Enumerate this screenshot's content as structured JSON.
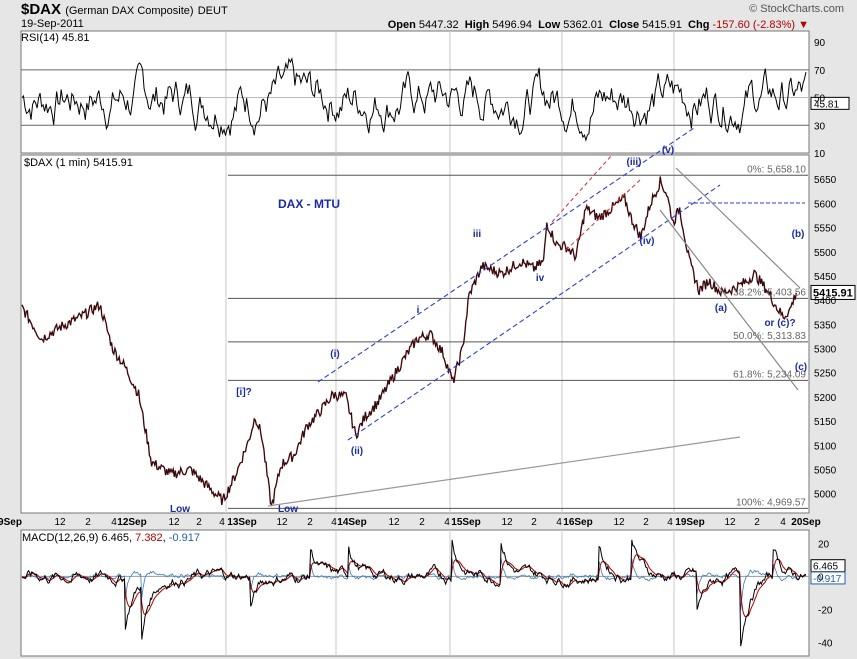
{
  "header": {
    "symbol": "$DAX",
    "name": "(German DAX Composite)",
    "exchange": "DEUT",
    "date": "19-Sep-2011",
    "watermark": "© StockCharts.com",
    "open_label": "Open",
    "open": "5447.32",
    "high_label": "High",
    "high": "5496.94",
    "low_label": "Low",
    "low": "5362.01",
    "close_label": "Close",
    "close": "5415.91",
    "chg_label": "Chg",
    "chg": "-157.60 (-2.83%)"
  },
  "chart_data": [
    {
      "type": "line",
      "panel": "RSI",
      "label": "RSI(14)",
      "last_value": "45.81",
      "ylim": [
        10,
        98
      ],
      "y_ticks": [
        90,
        70,
        50,
        30,
        10
      ],
      "reference_lines": [
        70,
        30
      ]
    },
    {
      "type": "line",
      "panel": "price",
      "label": "$DAX (1 min)",
      "last_value": "5415.91",
      "ylim": [
        4960,
        5700
      ],
      "y_ticks": [
        5650,
        5600,
        5550,
        5500,
        5450,
        5400,
        5350,
        5300,
        5250,
        5200,
        5150,
        5100,
        5050,
        5000
      ],
      "x_labels": [
        "9Sep",
        "12",
        "2",
        "4",
        "12Sep",
        "12",
        "2",
        "4",
        "13Sep",
        "12",
        "2",
        "4",
        "14Sep",
        "12",
        "2",
        "4",
        "15Sep",
        "12",
        "2",
        "4",
        "16Sep",
        "12",
        "2",
        "4",
        "19Sep",
        "12",
        "2",
        "4",
        "20Sep"
      ],
      "title_annotation": "DAX - MTU",
      "fib_levels": [
        {
          "label": "0%: 5,658.10",
          "value": 5658.1
        },
        {
          "label": "38.2%: 5,403.56",
          "value": 5403.56
        },
        {
          "label": "50.0%: 5,313.83",
          "value": 5313.83
        },
        {
          "label": "61.8%: 5,234.09",
          "value": 5234.09
        },
        {
          "label": "100%: 4,969.57",
          "value": 4969.57
        }
      ],
      "wave_labels": [
        "Low",
        "Low",
        "[i]?",
        "(i)",
        "(ii)",
        "i",
        "iii",
        "iv",
        "(iii)",
        "(iv)",
        "(v)",
        "(a)",
        "(b)",
        "(c)",
        "or (c)?"
      ],
      "series": [
        {
          "x": 0,
          "y": 5385
        },
        {
          "x": 3,
          "y": 5320
        },
        {
          "x": 6,
          "y": 5345
        },
        {
          "x": 9,
          "y": 5365
        },
        {
          "x": 12,
          "y": 5390
        },
        {
          "x": 14,
          "y": 5300
        },
        {
          "x": 16,
          "y": 5260
        },
        {
          "x": 18,
          "y": 5205
        },
        {
          "x": 20,
          "y": 5065
        },
        {
          "x": 23,
          "y": 5040
        },
        {
          "x": 26,
          "y": 5050
        },
        {
          "x": 29,
          "y": 5010
        },
        {
          "x": 31,
          "y": 4985
        },
        {
          "x": 33,
          "y": 5040
        },
        {
          "x": 35,
          "y": 5110
        },
        {
          "x": 36,
          "y": 5160
        },
        {
          "x": 37,
          "y": 5120
        },
        {
          "x": 38.5,
          "y": 4972
        },
        {
          "x": 40,
          "y": 5060
        },
        {
          "x": 42,
          "y": 5080
        },
        {
          "x": 44,
          "y": 5140
        },
        {
          "x": 46,
          "y": 5170
        },
        {
          "x": 48,
          "y": 5205
        },
        {
          "x": 50,
          "y": 5200
        },
        {
          "x": 51.5,
          "y": 5120
        },
        {
          "x": 53,
          "y": 5160
        },
        {
          "x": 55,
          "y": 5190
        },
        {
          "x": 57,
          "y": 5235
        },
        {
          "x": 59,
          "y": 5280
        },
        {
          "x": 61,
          "y": 5320
        },
        {
          "x": 63,
          "y": 5330
        },
        {
          "x": 65,
          "y": 5290
        },
        {
          "x": 66.5,
          "y": 5230
        },
        {
          "x": 68,
          "y": 5300
        },
        {
          "x": 69,
          "y": 5410
        },
        {
          "x": 71,
          "y": 5470
        },
        {
          "x": 74,
          "y": 5455
        },
        {
          "x": 77,
          "y": 5480
        },
        {
          "x": 79,
          "y": 5465
        },
        {
          "x": 80.5,
          "y": 5480
        },
        {
          "x": 81,
          "y": 5560
        },
        {
          "x": 82.5,
          "y": 5515
        },
        {
          "x": 84,
          "y": 5510
        },
        {
          "x": 85.5,
          "y": 5490
        },
        {
          "x": 87,
          "y": 5590
        },
        {
          "x": 89,
          "y": 5570
        },
        {
          "x": 91,
          "y": 5590
        },
        {
          "x": 93,
          "y": 5610
        },
        {
          "x": 94,
          "y": 5570
        },
        {
          "x": 95.5,
          "y": 5530
        },
        {
          "x": 97,
          "y": 5600
        },
        {
          "x": 98.5,
          "y": 5645
        },
        {
          "x": 99.5,
          "y": 5620
        },
        {
          "x": 100.5,
          "y": 5560
        },
        {
          "x": 101.5,
          "y": 5590
        },
        {
          "x": 103,
          "y": 5480
        },
        {
          "x": 104.5,
          "y": 5420
        },
        {
          "x": 106,
          "y": 5440
        },
        {
          "x": 108,
          "y": 5415
        },
        {
          "x": 110,
          "y": 5425
        },
        {
          "x": 112,
          "y": 5440
        },
        {
          "x": 113,
          "y": 5455
        },
        {
          "x": 115,
          "y": 5420
        },
        {
          "x": 116.5,
          "y": 5385
        },
        {
          "x": 117.5,
          "y": 5365
        },
        {
          "x": 118.5,
          "y": 5380
        },
        {
          "x": 119.5,
          "y": 5415
        }
      ]
    },
    {
      "type": "line",
      "panel": "MACD",
      "label": "MACD(12,26,9)",
      "values_text": [
        "6.465",
        "7.382",
        "-0.917"
      ],
      "last_values": [
        "6.465",
        "-0.917"
      ],
      "ylim": [
        -48,
        28
      ],
      "y_ticks": [
        20,
        0,
        -20,
        -40
      ]
    }
  ]
}
